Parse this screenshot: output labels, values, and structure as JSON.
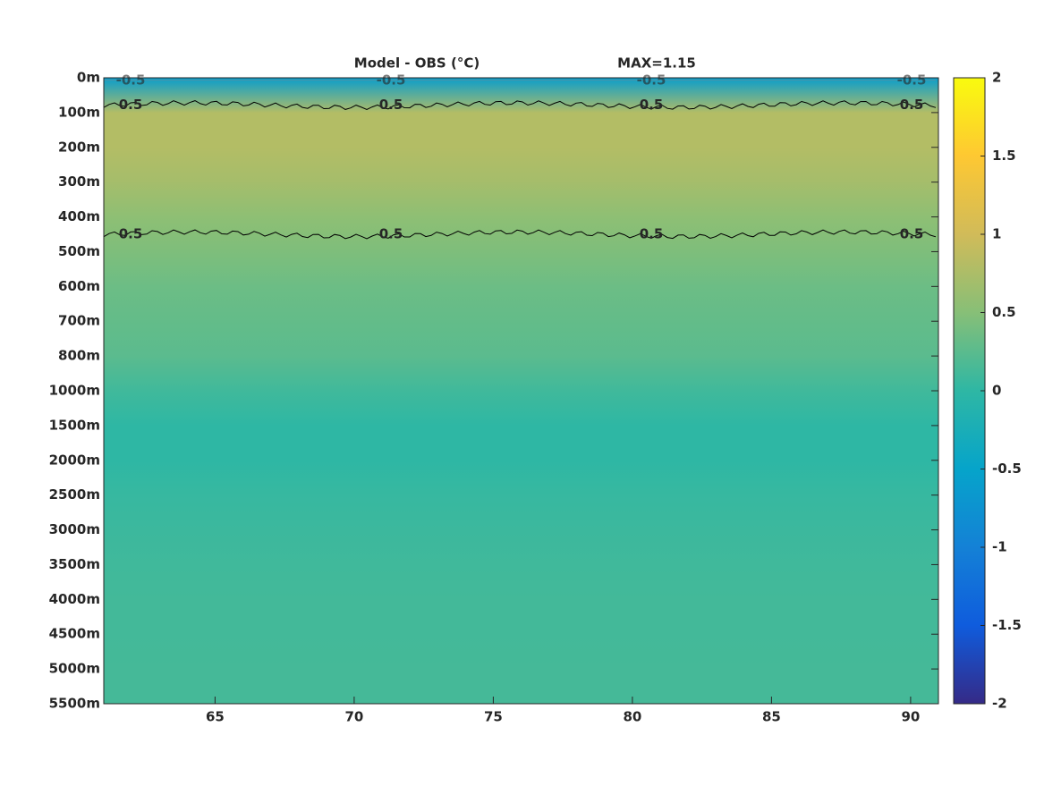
{
  "chart_data": {
    "type": "heatmap",
    "title": "Model - OBS (°C)",
    "annotation": "MAX=1.15",
    "y_categories": [
      "0m",
      "100m",
      "200m",
      "300m",
      "400m",
      "500m",
      "600m",
      "700m",
      "800m",
      "1000m",
      "1500m",
      "2000m",
      "2500m",
      "3000m",
      "3500m",
      "4000m",
      "4500m",
      "5000m",
      "5500m"
    ],
    "values": [
      -0.6,
      0.8,
      0.8,
      0.7,
      0.55,
      0.45,
      0.35,
      0.3,
      0.25,
      0.1,
      0.0,
      0.0,
      0.05,
      0.08,
      0.1,
      0.12,
      0.12,
      0.13,
      0.13
    ],
    "xlim": [
      61,
      91
    ],
    "xticks": [
      65,
      70,
      75,
      80,
      85,
      90
    ],
    "clim": [
      -2,
      2
    ],
    "cticks": [
      -2,
      -1.5,
      -1,
      -0.5,
      0,
      0.5,
      1,
      1.5,
      2
    ],
    "colormap": [
      "#352a87",
      "#0f5cdd",
      "#1481d6",
      "#06a4ca",
      "#2eb7a4",
      "#87bf77",
      "#d1bb59",
      "#fec832",
      "#f9fb0e"
    ],
    "contour_levels": [
      -0.5,
      0.5
    ]
  }
}
